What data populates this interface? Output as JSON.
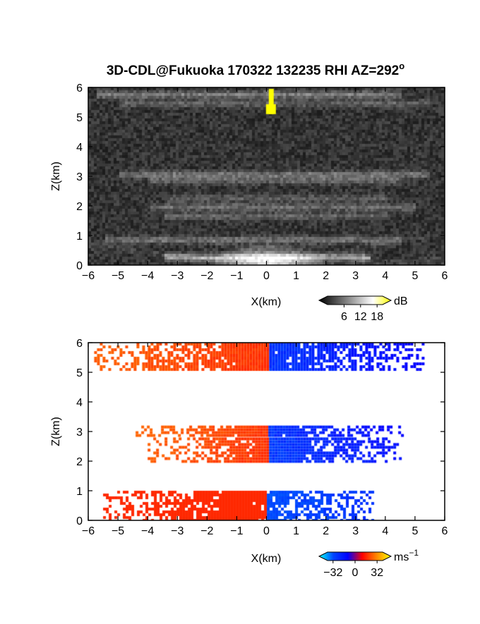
{
  "chart_data": [
    {
      "type": "heatmap",
      "panel": "reflectivity",
      "title": "3D-CDL@Fukuoka 170322 132235 RHI AZ=292",
      "title_superscript": "o",
      "xlabel": "X(km)",
      "ylabel": "Z(km)",
      "xlim": [
        -6,
        6
      ],
      "ylim": [
        0,
        6
      ],
      "x_ticks": [
        -6,
        -5,
        -4,
        -3,
        -2,
        -1,
        0,
        1,
        2,
        3,
        4,
        5,
        6
      ],
      "y_ticks": [
        0,
        1,
        2,
        3,
        4,
        5,
        6
      ],
      "colorbar": {
        "unit": "dB",
        "ticks": [
          6,
          12,
          18
        ],
        "range": [
          0,
          20
        ],
        "colors": [
          "#000000",
          "#ffffff",
          "#ffff00"
        ]
      },
      "layers": [
        {
          "z": 5.8,
          "x_range": [
            -5.8,
            4.5
          ],
          "intensity": 0.55
        },
        {
          "z": 5.5,
          "x_range": [
            -5.0,
            5.5
          ],
          "intensity": 0.35
        },
        {
          "z": 3.1,
          "x_range": [
            -5.0,
            5.5
          ],
          "intensity": 0.5
        },
        {
          "z": 2.9,
          "x_range": [
            -4.0,
            4.5
          ],
          "intensity": 0.35
        },
        {
          "z": 2.3,
          "x_range": [
            -3.5,
            4.0
          ],
          "intensity": 0.3
        },
        {
          "z": 2.0,
          "x_range": [
            -4.0,
            5.0
          ],
          "intensity": 0.45
        },
        {
          "z": 1.7,
          "x_range": [
            -3.5,
            4.0
          ],
          "intensity": 0.35
        },
        {
          "z": 0.9,
          "x_range": [
            -5.5,
            4.5
          ],
          "intensity": 0.45
        },
        {
          "z": 0.3,
          "x_range": [
            -3.5,
            3.5
          ],
          "intensity": 0.85
        }
      ],
      "yellow_feature": {
        "x": 0.15,
        "z_range": [
          5.1,
          5.95
        ],
        "value": 20
      }
    },
    {
      "type": "heatmap",
      "panel": "doppler_velocity",
      "xlabel": "X(km)",
      "ylabel": "Z(km)",
      "xlim": [
        -6,
        6
      ],
      "ylim": [
        0,
        6
      ],
      "x_ticks": [
        -6,
        -5,
        -4,
        -3,
        -2,
        -1,
        0,
        1,
        2,
        3,
        4,
        5,
        6
      ],
      "y_ticks": [
        0,
        1,
        2,
        3,
        4,
        5,
        6
      ],
      "colorbar": {
        "unit": "ms",
        "unit_superscript": "−1",
        "ticks": [
          "−32",
          "0",
          "32"
        ],
        "range": [
          -40,
          40
        ],
        "colors": [
          "#00ffff",
          "#0000ff",
          "#ff0000",
          "#ffff00"
        ]
      },
      "layers": [
        {
          "z_range": [
            5.1,
            6.0
          ],
          "x_range": [
            -5.8,
            5.3
          ],
          "v_left": 20,
          "v_right": -20
        },
        {
          "z_range": [
            2.9,
            3.2
          ],
          "x_range": [
            -4.5,
            4.6
          ],
          "v_left": 22,
          "v_right": -20
        },
        {
          "z_range": [
            2.0,
            2.8
          ],
          "x_range": [
            -4.0,
            4.5
          ],
          "v_left": 20,
          "v_right": -18
        },
        {
          "z_range": [
            0.0,
            1.0
          ],
          "x_range": [
            -5.5,
            3.6
          ],
          "v_left": 10,
          "v_right": -12
        }
      ]
    }
  ]
}
